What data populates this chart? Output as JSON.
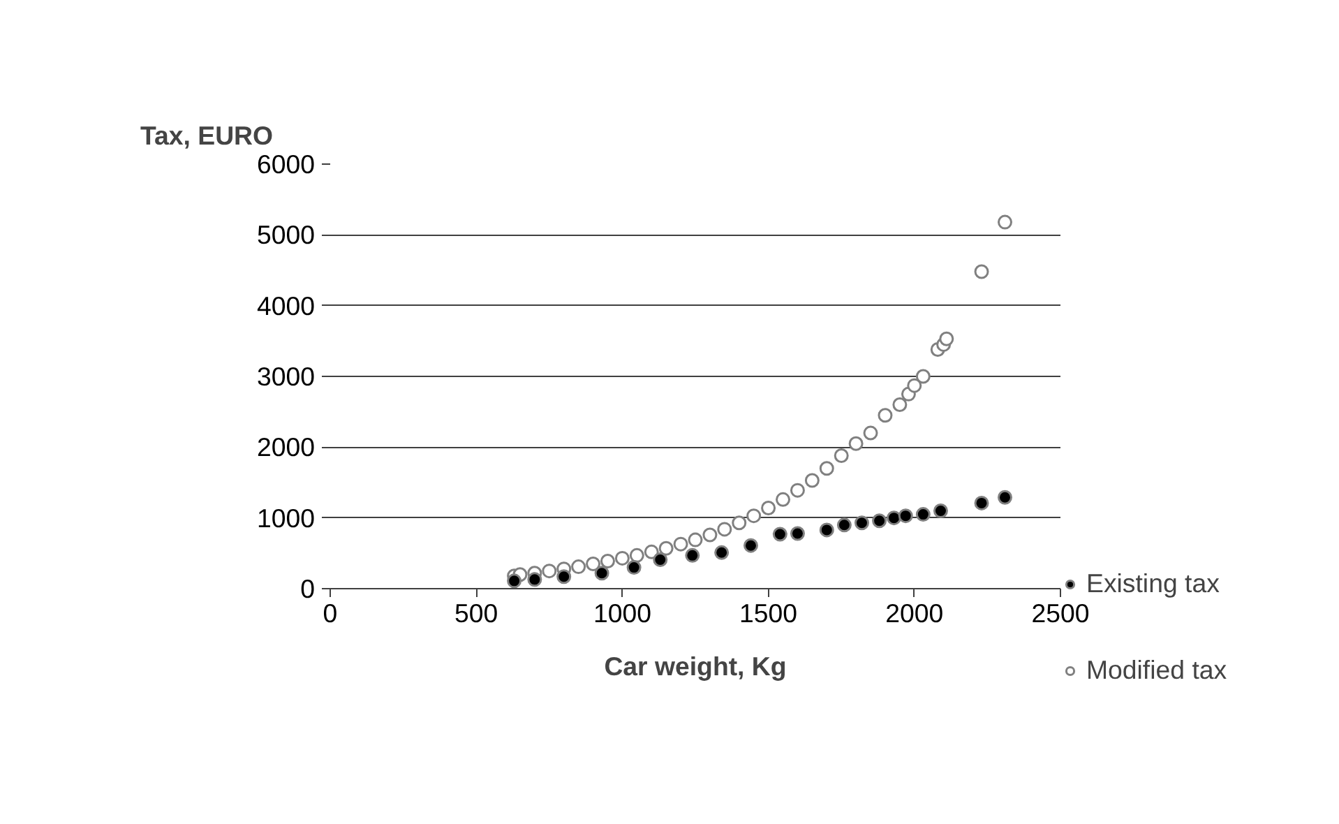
{
  "chart_data": {
    "type": "scatter",
    "xlabel": "Car weight, Kg",
    "ylabel": "Tax, EURO",
    "xlim": [
      0,
      2500
    ],
    "xticks": [
      0,
      500,
      1000,
      1500,
      2000,
      2500
    ],
    "ylim": [
      0,
      6000
    ],
    "yticks": [
      0,
      1000,
      2000,
      3000,
      4000,
      5000,
      6000
    ],
    "grid": "y",
    "legend": "right",
    "marker": "circle",
    "series": [
      {
        "name": "Existing tax",
        "color": "#000000",
        "x": [
          630,
          700,
          800,
          930,
          1040,
          1130,
          1240,
          1340,
          1440,
          1540,
          1600,
          1700,
          1760,
          1820,
          1880,
          1930,
          1970,
          2030,
          2090,
          2230,
          2310
        ],
        "values": [
          110,
          130,
          170,
          220,
          300,
          410,
          470,
          510,
          610,
          770,
          780,
          830,
          900,
          930,
          960,
          1000,
          1030,
          1050,
          1100,
          1210,
          1290
        ]
      },
      {
        "name": "Modified tax",
        "color": "#ffffff",
        "x": [
          630,
          650,
          700,
          750,
          800,
          850,
          900,
          950,
          1000,
          1050,
          1100,
          1150,
          1200,
          1250,
          1300,
          1350,
          1400,
          1450,
          1500,
          1550,
          1600,
          1650,
          1700,
          1750,
          1800,
          1850,
          1900,
          1950,
          1980,
          2000,
          2030,
          2080,
          2100,
          2110,
          2230,
          2310
        ],
        "values": [
          180,
          200,
          220,
          250,
          280,
          310,
          350,
          390,
          430,
          470,
          520,
          570,
          630,
          690,
          760,
          840,
          930,
          1030,
          1140,
          1260,
          1390,
          1530,
          1700,
          1880,
          2050,
          2200,
          2450,
          2600,
          2750,
          2870,
          3000,
          3380,
          3450,
          3530,
          4480,
          5180
        ]
      }
    ]
  }
}
